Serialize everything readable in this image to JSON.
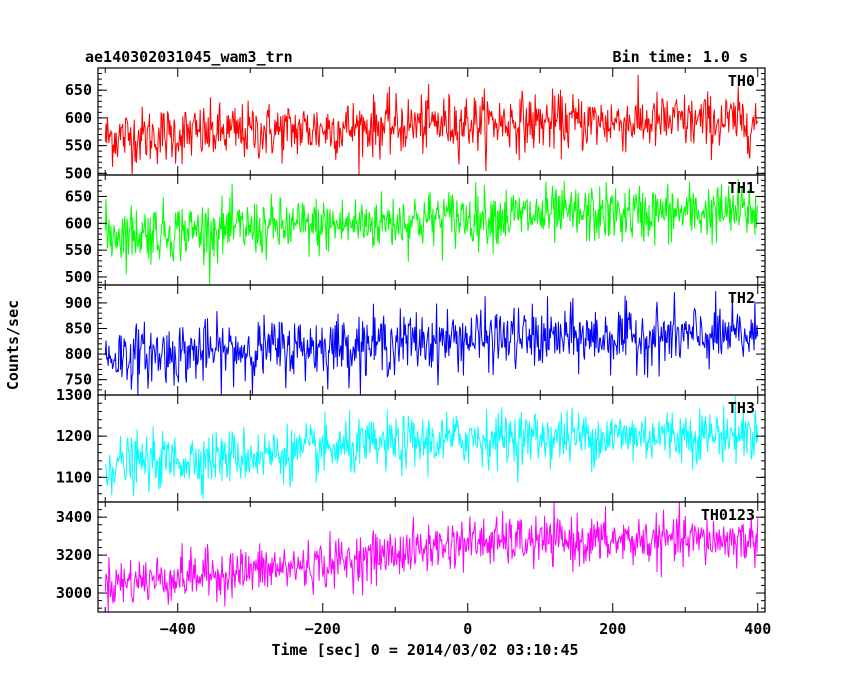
{
  "chart_data": {
    "type": "line",
    "title": "ae140302031045_wam3_trn",
    "bin_time_label": "Bin time: 1.0 s",
    "xlabel": "Time [sec] 0 = 2014/03/02 03:10:45",
    "ylabel": "Counts/sec",
    "xlim": [
      -510,
      410
    ],
    "x_ticks": [
      -400,
      -200,
      0,
      200,
      400
    ],
    "x_tick_labels": [
      "−400",
      "−200",
      "0",
      "200",
      "400"
    ],
    "data_x_range": [
      -500,
      400
    ],
    "bin_time_s": 1.0,
    "grid": false,
    "panels": [
      {
        "name": "TH0",
        "color": "#ff0000",
        "ylim": [
          497,
          690
        ],
        "y_ticks": [
          500,
          550,
          600,
          650
        ],
        "y_tick_labels": [
          "500",
          "550",
          "600",
          "650"
        ],
        "trend": [
          [
            -500,
            565
          ],
          [
            -200,
            580
          ],
          [
            0,
            592
          ],
          [
            400,
            593
          ]
        ],
        "noise_sd": 26,
        "clip": [
          497,
          690
        ]
      },
      {
        "name": "TH1",
        "color": "#00ff00",
        "ylim": [
          485,
          690
        ],
        "y_ticks": [
          500,
          550,
          600,
          650
        ],
        "y_tick_labels": [
          "500",
          "550",
          "600",
          "650"
        ],
        "trend": [
          [
            -500,
            580
          ],
          [
            -200,
            595
          ],
          [
            0,
            612
          ],
          [
            400,
            622
          ]
        ],
        "noise_sd": 27,
        "clip": [
          485,
          690
        ]
      },
      {
        "name": "TH2",
        "color": "#0000ff",
        "ylim": [
          720,
          935
        ],
        "y_ticks": [
          750,
          800,
          850,
          900
        ],
        "y_tick_labels": [
          "750",
          "800",
          "850",
          "900"
        ],
        "trend": [
          [
            -500,
            795
          ],
          [
            -200,
            815
          ],
          [
            0,
            830
          ],
          [
            400,
            835
          ]
        ],
        "noise_sd": 30,
        "clip": [
          720,
          935
        ]
      },
      {
        "name": "TH3",
        "color": "#00ffff",
        "ylim": [
          1040,
          1300
        ],
        "y_ticks": [
          1100,
          1200,
          1300
        ],
        "y_tick_labels": [
          "1100",
          "1200",
          "1300"
        ],
        "trend": [
          [
            -500,
            1130
          ],
          [
            -200,
            1165
          ],
          [
            0,
            1195
          ],
          [
            400,
            1205
          ]
        ],
        "noise_sd": 33,
        "clip": [
          1040,
          1300
        ]
      },
      {
        "name": "TH0123",
        "color": "#ff00ff",
        "ylim": [
          2900,
          3480
        ],
        "y_ticks": [
          3000,
          3200,
          3400
        ],
        "y_tick_labels": [
          "3000",
          "3200",
          "3400"
        ],
        "trend": [
          [
            -500,
            3050
          ],
          [
            -200,
            3150
          ],
          [
            0,
            3270
          ],
          [
            400,
            3280
          ]
        ],
        "noise_sd": 65,
        "clip": [
          2900,
          3480
        ]
      }
    ]
  }
}
